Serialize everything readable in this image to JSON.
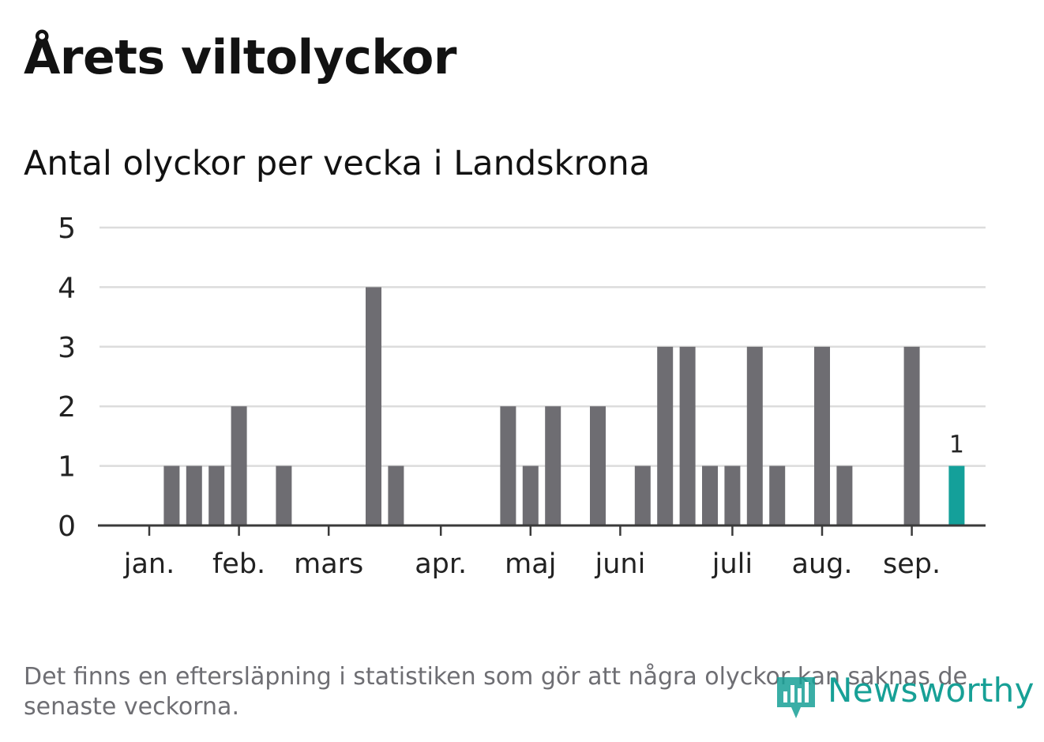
{
  "header": {
    "title": "Årets viltolyckor",
    "subtitle": "Antal olyckor per vecka i Landskrona"
  },
  "footer": {
    "note": "Det finns en eftersläpning i statistiken som gör att några olyckor kan saknas de senaste veckorna.",
    "brand": "Newsworthy"
  },
  "colors": {
    "bar": "#6e6d72",
    "highlight": "#14a09a",
    "grid": "#dcdcdc",
    "axis": "#3a3a3a",
    "text": "#222222"
  },
  "chart_data": {
    "type": "bar",
    "ylim": [
      0,
      5
    ],
    "yticks": [
      0,
      1,
      2,
      3,
      4,
      5
    ],
    "grid": true,
    "x": [
      1,
      2,
      3,
      4,
      5,
      6,
      7,
      8,
      9,
      10,
      11,
      12,
      13,
      14,
      15,
      16,
      17,
      18,
      19,
      20,
      21,
      22,
      23,
      24,
      25,
      26,
      27,
      28,
      29,
      30,
      31,
      32,
      33,
      34,
      35,
      36,
      37,
      38
    ],
    "values": [
      0,
      1,
      1,
      1,
      2,
      0,
      1,
      0,
      0,
      0,
      4,
      1,
      0,
      0,
      0,
      0,
      2,
      1,
      2,
      0,
      2,
      0,
      1,
      3,
      3,
      1,
      1,
      3,
      1,
      0,
      3,
      1,
      0,
      0,
      3,
      0,
      1,
      0
    ],
    "highlight_index": 36,
    "highlight_label": "1",
    "month_labels": [
      "jan.",
      "feb.",
      "mars",
      "apr.",
      "maj",
      "juni",
      "juli",
      "aug.",
      "sep."
    ],
    "month_positions": [
      1.0,
      5.0,
      9.0,
      14.0,
      18.0,
      22.0,
      27.0,
      31.0,
      35.0
    ]
  }
}
